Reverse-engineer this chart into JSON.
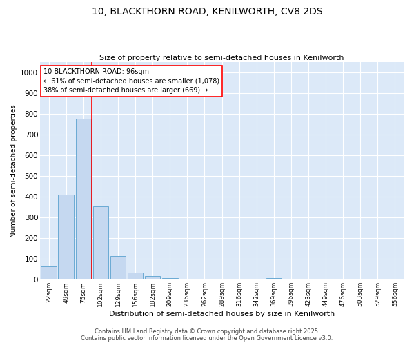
{
  "title1": "10, BLACKTHORN ROAD, KENILWORTH, CV8 2DS",
  "title2": "Size of property relative to semi-detached houses in Kenilworth",
  "xlabel": "Distribution of semi-detached houses by size in Kenilworth",
  "ylabel": "Number of semi-detached properties",
  "bar_labels": [
    "22sqm",
    "49sqm",
    "75sqm",
    "102sqm",
    "129sqm",
    "156sqm",
    "182sqm",
    "209sqm",
    "236sqm",
    "262sqm",
    "289sqm",
    "316sqm",
    "342sqm",
    "369sqm",
    "396sqm",
    "423sqm",
    "449sqm",
    "476sqm",
    "503sqm",
    "529sqm",
    "556sqm"
  ],
  "bar_values": [
    65,
    410,
    775,
    355,
    115,
    33,
    18,
    8,
    0,
    0,
    0,
    0,
    0,
    8,
    0,
    0,
    0,
    0,
    0,
    0,
    0
  ],
  "bar_color": "#c5d8f0",
  "bar_edge_color": "#6aaad4",
  "vline_color": "red",
  "vline_pos": 2.5,
  "annotation_title": "10 BLACKTHORN ROAD: 96sqm",
  "annotation_line1": "← 61% of semi-detached houses are smaller (1,078)",
  "annotation_line2": "38% of semi-detached houses are larger (669) →",
  "ylim": [
    0,
    1050
  ],
  "yticks": [
    0,
    100,
    200,
    300,
    400,
    500,
    600,
    700,
    800,
    900,
    1000
  ],
  "bg_color": "#dce9f8",
  "grid_color": "#ffffff",
  "footer1": "Contains HM Land Registry data © Crown copyright and database right 2025.",
  "footer2": "Contains public sector information licensed under the Open Government Licence v3.0."
}
